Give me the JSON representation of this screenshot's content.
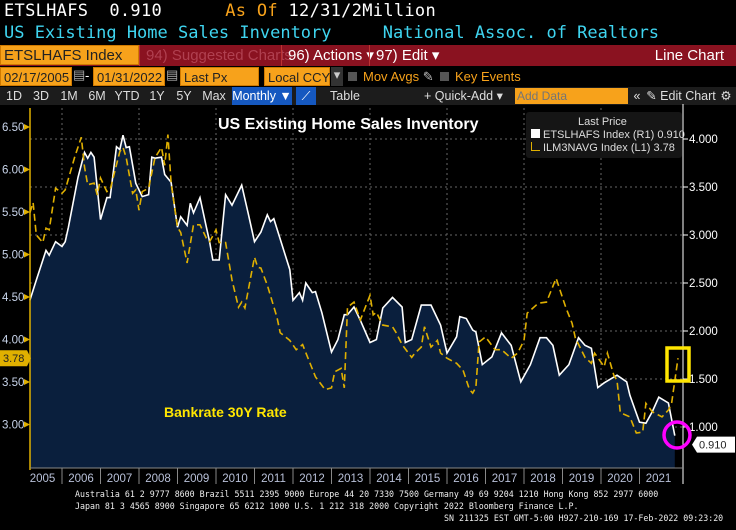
{
  "header": {
    "ticker": "ETSLHAFS",
    "value": "0.910",
    "as_of_label": "As Of",
    "as_of": "12/31/2",
    "unit": "Million",
    "name": "US Existing Home Sales Inventory",
    "source": "National Assoc. of Realtors"
  },
  "toolbar": {
    "security": "ETSLHAFS Index",
    "suggested": "94) Suggested Charts",
    "actions": "96) Actions ▾",
    "edit": "97) Edit ▾",
    "chart_type": "Line Chart",
    "start_date": "02/17/2005",
    "end_date": "01/31/2022",
    "field": "Last Px",
    "currency": "Local CCY",
    "mov_avgs": "Mov Avgs",
    "key_events": "Key Events",
    "ranges": [
      "1D",
      "3D",
      "1M",
      "6M",
      "YTD",
      "1Y",
      "5Y",
      "Max"
    ],
    "period": "Monthly ▼",
    "table": "Table",
    "quick_add": "+ Quick-Add ▾",
    "add_data_placeholder": "Add Data",
    "collapse": "«",
    "edit_chart": "✎ Edit Chart",
    "settings": "⚙"
  },
  "colors": {
    "inventory": "#ffffff",
    "rate": "#e0b000",
    "fill": "#0a1f3d",
    "annotation_box": "#ffe600",
    "annotation_circle": "#ff00ff"
  },
  "footer": {
    "line1": "Australia 61 2 9777 8600 Brazil 5511 2395 9000 Europe 44 20 7330 7500 Germany 49 69 9204 1210 Hong Kong 852 2977 6000",
    "line2": "Japan 81 3 4565 8900       Singapore 65 6212 1000       U.S. 1 212 318 2000         Copyright 2022 Bloomberg Finance L.P.",
    "line3": "SN 211325 EST  GMT-5:00 H927-210-169 17-Feb-2022 09:23:20"
  },
  "chart_data": {
    "type": "line",
    "title": "US Existing Home Sales Inventory",
    "annotation": "Bankrate 30Y Rate",
    "legend": {
      "header": "Last Price",
      "placement": "top-right",
      "items": [
        {
          "name": "ETSLHAFS Index",
          "axis": "(R1)",
          "last": "0.910"
        },
        {
          "name": "ILM3NAVG Index",
          "axis": "(L1)",
          "last": "3.78"
        }
      ]
    },
    "grid": true,
    "x_ticks": [
      "2005",
      "2006",
      "2007",
      "2008",
      "2009",
      "2010",
      "2011",
      "2012",
      "2013",
      "2014",
      "2015",
      "2016",
      "2017",
      "2018",
      "2019",
      "2020",
      "2021"
    ],
    "left_axis": {
      "ylim": [
        2.7,
        6.75
      ],
      "ticks": [
        "6.50",
        "6.00",
        "5.50",
        "5.00",
        "4.50",
        "4.00",
        "3.50",
        "3.00"
      ],
      "last_tag": "3.78"
    },
    "right_axis": {
      "ylim": [
        0.7,
        4.3
      ],
      "ticks": [
        "4.000",
        "3.500",
        "3.000",
        "2.500",
        "2.000",
        "1.500",
        "1.000"
      ],
      "last_tag": "0.910"
    },
    "series": [
      {
        "name": "ETSLHAFS Index",
        "axis": "right",
        "style": "solid-area",
        "points": [
          [
            "2005-03",
            2.32
          ],
          [
            "2005-05",
            2.53
          ],
          [
            "2005-08",
            2.84
          ],
          [
            "2005-09",
            2.79
          ],
          [
            "2005-11",
            2.93
          ],
          [
            "2006-01",
            2.88
          ],
          [
            "2006-02",
            2.93
          ],
          [
            "2006-03",
            3.08
          ],
          [
            "2006-06",
            3.6
          ],
          [
            "2006-08",
            3.86
          ],
          [
            "2006-09",
            3.8
          ],
          [
            "2006-10",
            3.86
          ],
          [
            "2006-11",
            3.81
          ],
          [
            "2007-01",
            3.16
          ],
          [
            "2007-03",
            3.39
          ],
          [
            "2007-04",
            3.39
          ],
          [
            "2007-06",
            3.92
          ],
          [
            "2007-07",
            3.89
          ],
          [
            "2007-08",
            4.04
          ],
          [
            "2007-09",
            3.91
          ],
          [
            "2007-10",
            3.92
          ],
          [
            "2007-12",
            3.54
          ],
          [
            "2008-02",
            3.4
          ],
          [
            "2008-04",
            3.42
          ],
          [
            "2008-05",
            3.81
          ],
          [
            "2008-06",
            3.8
          ],
          [
            "2008-08",
            3.81
          ],
          [
            "2008-09",
            3.63
          ],
          [
            "2008-11",
            3.55
          ],
          [
            "2009-01",
            3.08
          ],
          [
            "2009-02",
            3.19
          ],
          [
            "2009-04",
            3.1
          ],
          [
            "2009-05",
            3.33
          ],
          [
            "2009-06",
            3.23
          ],
          [
            "2009-08",
            3.39
          ],
          [
            "2009-10",
            3.08
          ],
          [
            "2009-11",
            2.93
          ],
          [
            "2009-12",
            2.74
          ],
          [
            "2010-02",
            2.74
          ],
          [
            "2010-03",
            3.08
          ],
          [
            "2010-04",
            3.42
          ],
          [
            "2010-06",
            3.31
          ],
          [
            "2010-09",
            3.52
          ],
          [
            "2010-11",
            3.23
          ],
          [
            "2011-01",
            2.93
          ],
          [
            "2011-03",
            3.03
          ],
          [
            "2011-05",
            3.21
          ],
          [
            "2011-06",
            3.14
          ],
          [
            "2011-07",
            3.17
          ],
          [
            "2011-12",
            2.64
          ],
          [
            "2012-01",
            2.32
          ],
          [
            "2012-03",
            2.4
          ],
          [
            "2012-04",
            2.32
          ],
          [
            "2012-05",
            2.5
          ],
          [
            "2012-07",
            2.4
          ],
          [
            "2012-08",
            2.41
          ],
          [
            "2012-10",
            2.19
          ],
          [
            "2013-01",
            1.78
          ],
          [
            "2013-03",
            1.91
          ],
          [
            "2013-05",
            2.17
          ],
          [
            "2013-06",
            2.17
          ],
          [
            "2013-08",
            2.25
          ],
          [
            "2013-10",
            2.11
          ],
          [
            "2014-01",
            1.88
          ],
          [
            "2014-03",
            1.91
          ],
          [
            "2014-05",
            2.24
          ],
          [
            "2014-08",
            2.35
          ],
          [
            "2014-11",
            2.25
          ],
          [
            "2014-12",
            1.88
          ],
          [
            "2015-02",
            1.91
          ],
          [
            "2015-05",
            2.27
          ],
          [
            "2015-08",
            2.27
          ],
          [
            "2015-11",
            2.06
          ],
          [
            "2016-01",
            1.77
          ],
          [
            "2016-04",
            1.94
          ],
          [
            "2016-05",
            2.15
          ],
          [
            "2016-07",
            2.13
          ],
          [
            "2016-09",
            2.01
          ],
          [
            "2016-10",
            1.99
          ],
          [
            "2016-12",
            1.65
          ],
          [
            "2017-03",
            1.73
          ],
          [
            "2017-06",
            1.98
          ],
          [
            "2017-09",
            1.85
          ],
          [
            "2017-12",
            1.47
          ],
          [
            "2018-03",
            1.65
          ],
          [
            "2018-06",
            1.93
          ],
          [
            "2018-08",
            1.93
          ],
          [
            "2018-10",
            1.85
          ],
          [
            "2018-12",
            1.54
          ],
          [
            "2019-03",
            1.65
          ],
          [
            "2019-06",
            1.93
          ],
          [
            "2019-08",
            1.85
          ],
          [
            "2019-10",
            1.82
          ],
          [
            "2019-12",
            1.41
          ],
          [
            "2020-02",
            1.46
          ],
          [
            "2020-06",
            1.54
          ],
          [
            "2020-09",
            1.47
          ],
          [
            "2020-10",
            1.33
          ],
          [
            "2021-01",
            1.05
          ],
          [
            "2021-03",
            1.04
          ],
          [
            "2021-05",
            1.16
          ],
          [
            "2021-07",
            1.31
          ],
          [
            "2021-10",
            1.25
          ],
          [
            "2021-12",
            0.91
          ]
        ]
      },
      {
        "name": "ILM3NAVG Index",
        "axis": "left",
        "style": "dashed",
        "points": [
          [
            "2005-03",
            5.49
          ],
          [
            "2005-04",
            5.61
          ],
          [
            "2005-05",
            5.23
          ],
          [
            "2005-07",
            5.14
          ],
          [
            "2005-08",
            5.31
          ],
          [
            "2005-09",
            5.29
          ],
          [
            "2005-11",
            5.78
          ],
          [
            "2006-01",
            5.72
          ],
          [
            "2006-02",
            5.76
          ],
          [
            "2006-05",
            6.15
          ],
          [
            "2006-07",
            6.38
          ],
          [
            "2006-08",
            6.03
          ],
          [
            "2006-09",
            5.82
          ],
          [
            "2006-11",
            5.84
          ],
          [
            "2006-12",
            5.7
          ],
          [
            "2007-01",
            5.9
          ],
          [
            "2007-03",
            5.74
          ],
          [
            "2007-04",
            5.76
          ],
          [
            "2007-07",
            6.21
          ],
          [
            "2007-08",
            6.26
          ],
          [
            "2007-09",
            6.14
          ],
          [
            "2007-11",
            5.72
          ],
          [
            "2007-12",
            5.76
          ],
          [
            "2008-01",
            5.52
          ],
          [
            "2008-02",
            5.74
          ],
          [
            "2008-04",
            5.78
          ],
          [
            "2008-06",
            6.14
          ],
          [
            "2008-08",
            6.26
          ],
          [
            "2008-09",
            6.05
          ],
          [
            "2008-10",
            6.41
          ],
          [
            "2008-11",
            5.84
          ],
          [
            "2009-01",
            5.32
          ],
          [
            "2009-02",
            5.26
          ],
          [
            "2009-04",
            4.9
          ],
          [
            "2009-06",
            5.35
          ],
          [
            "2009-08",
            5.35
          ],
          [
            "2009-10",
            5.19
          ],
          [
            "2009-11",
            5.15
          ],
          [
            "2010-01",
            5.29
          ],
          [
            "2010-02",
            5.14
          ],
          [
            "2010-04",
            5.14
          ],
          [
            "2010-06",
            4.7
          ],
          [
            "2010-08",
            4.38
          ],
          [
            "2010-09",
            4.44
          ],
          [
            "2010-10",
            4.37
          ],
          [
            "2011-01",
            4.97
          ],
          [
            "2011-02",
            4.85
          ],
          [
            "2011-03",
            4.84
          ],
          [
            "2011-05",
            4.64
          ],
          [
            "2011-08",
            4.26
          ],
          [
            "2011-09",
            4.08
          ],
          [
            "2011-12",
            3.99
          ],
          [
            "2012-02",
            3.88
          ],
          [
            "2012-04",
            3.94
          ],
          [
            "2012-08",
            3.56
          ],
          [
            "2012-11",
            3.41
          ],
          [
            "2013-01",
            3.43
          ],
          [
            "2013-02",
            3.62
          ],
          [
            "2013-04",
            3.66
          ],
          [
            "2013-05",
            3.43
          ],
          [
            "2013-06",
            4.38
          ],
          [
            "2013-08",
            4.44
          ],
          [
            "2013-10",
            4.23
          ],
          [
            "2014-01",
            4.52
          ],
          [
            "2014-02",
            4.29
          ],
          [
            "2014-03",
            4.32
          ],
          [
            "2014-05",
            4.17
          ],
          [
            "2014-08",
            4.15
          ],
          [
            "2014-09",
            4.09
          ],
          [
            "2014-11",
            3.94
          ],
          [
            "2015-02",
            3.79
          ],
          [
            "2015-03",
            3.84
          ],
          [
            "2015-05",
            3.91
          ],
          [
            "2015-06",
            4.15
          ],
          [
            "2015-08",
            3.91
          ],
          [
            "2015-10",
            3.99
          ],
          [
            "2015-11",
            3.84
          ],
          [
            "2016-01",
            3.78
          ],
          [
            "2016-04",
            3.72
          ],
          [
            "2016-06",
            3.64
          ],
          [
            "2016-08",
            3.41
          ],
          [
            "2016-09",
            3.37
          ],
          [
            "2016-10",
            3.44
          ],
          [
            "2016-11",
            3.97
          ],
          [
            "2017-01",
            4.03
          ],
          [
            "2017-04",
            3.88
          ],
          [
            "2017-06",
            3.88
          ],
          [
            "2017-09",
            3.78
          ],
          [
            "2017-11",
            3.84
          ],
          [
            "2018-01",
            3.99
          ],
          [
            "2018-02",
            4.31
          ],
          [
            "2018-05",
            4.41
          ],
          [
            "2018-06",
            4.43
          ],
          [
            "2018-08",
            4.44
          ],
          [
            "2018-11",
            4.72
          ],
          [
            "2019-02",
            4.38
          ],
          [
            "2019-04",
            4.19
          ],
          [
            "2019-05",
            4.02
          ],
          [
            "2019-08",
            3.79
          ],
          [
            "2019-10",
            3.72
          ],
          [
            "2019-11",
            3.84
          ],
          [
            "2020-02",
            3.68
          ],
          [
            "2020-03",
            3.84
          ],
          [
            "2020-05",
            3.58
          ],
          [
            "2020-06",
            3.52
          ],
          [
            "2020-07",
            3.14
          ],
          [
            "2020-10",
            3.09
          ],
          [
            "2020-12",
            2.9
          ],
          [
            "2021-02",
            2.91
          ],
          [
            "2021-03",
            3.25
          ],
          [
            "2021-05",
            3.15
          ],
          [
            "2021-08",
            3.09
          ],
          [
            "2021-10",
            3.17
          ],
          [
            "2021-11",
            3.25
          ],
          [
            "2022-01",
            3.78
          ]
        ]
      }
    ]
  }
}
